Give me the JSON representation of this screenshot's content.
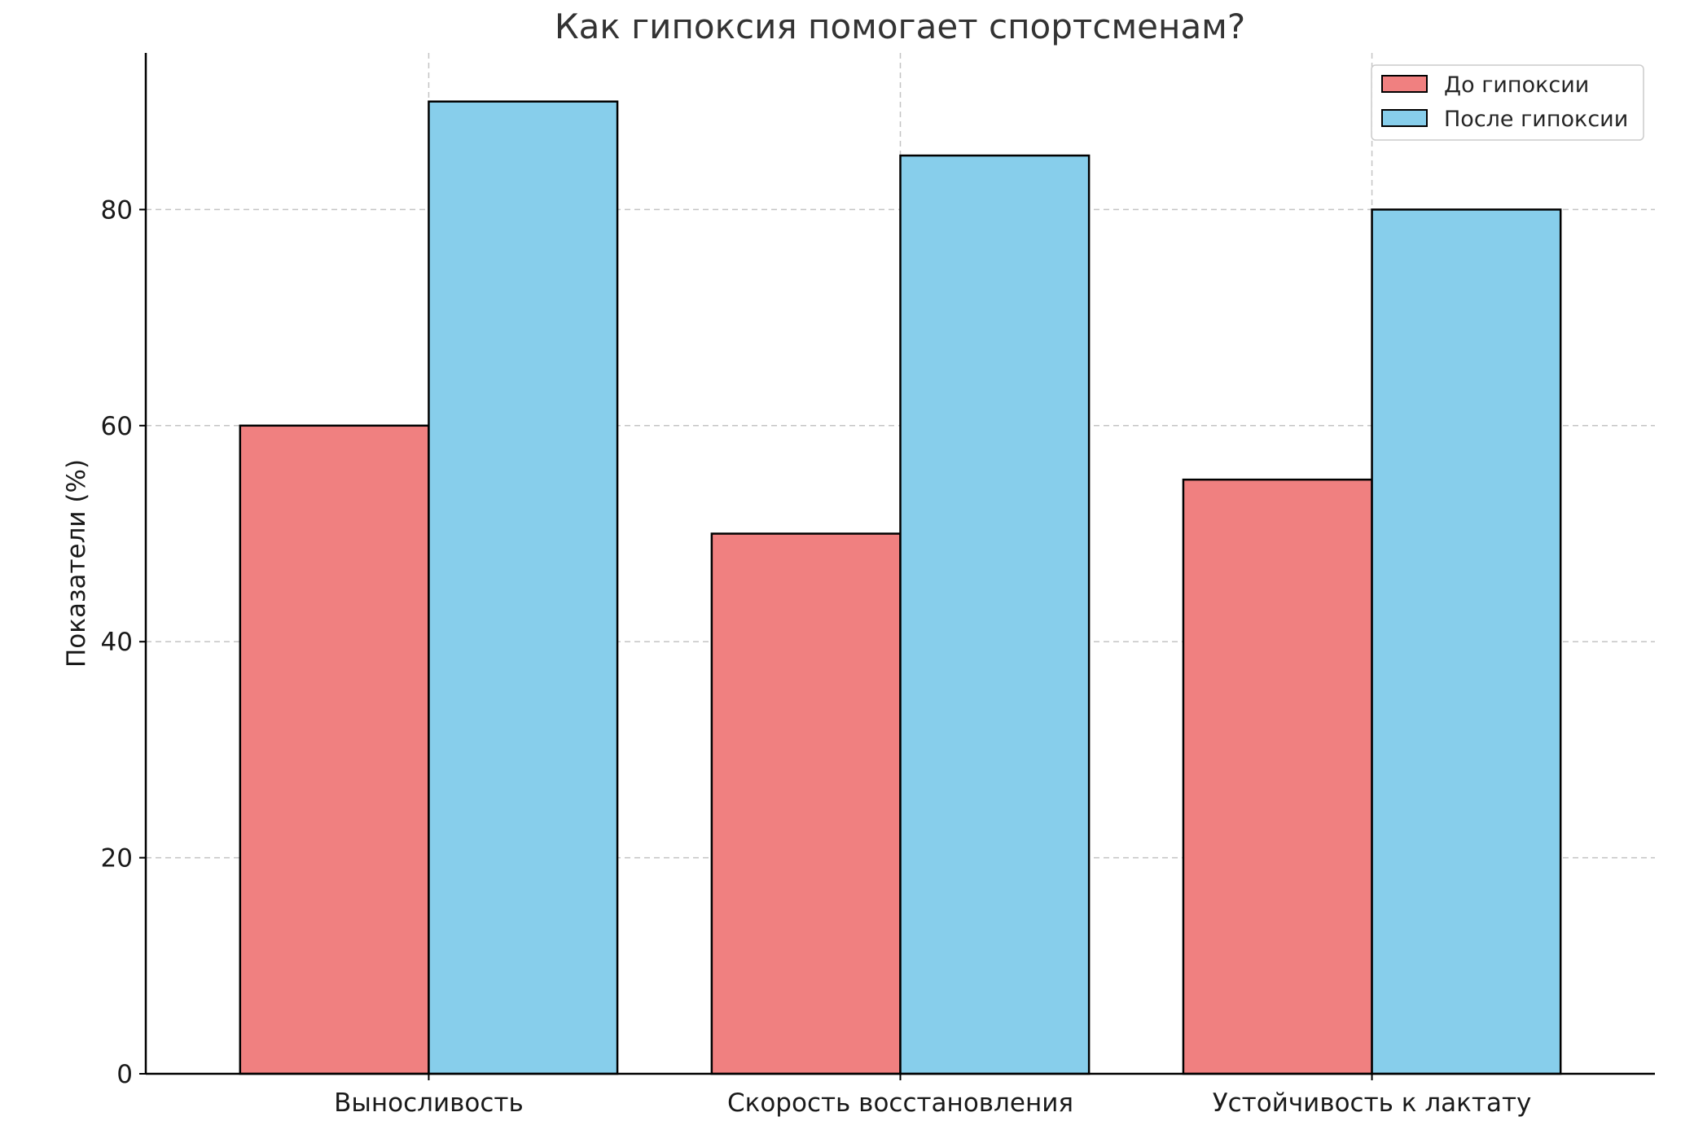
{
  "chart_data": {
    "type": "bar",
    "title": "Как гипоксия помогает спортсменам?",
    "xlabel": "",
    "ylabel": "Показатели (%)",
    "categories": [
      "Выносливость",
      "Скорость восстановления",
      "Устойчивость к лактату"
    ],
    "series": [
      {
        "name": "До гипоксии",
        "values": [
          60,
          50,
          55
        ],
        "color": "#F08080"
      },
      {
        "name": "После гипоксии",
        "values": [
          90,
          85,
          80
        ],
        "color": "#87CEEB"
      }
    ],
    "ylim": [
      0,
      94.5
    ],
    "yticks": [
      0,
      20,
      40,
      60,
      80
    ],
    "grid": true,
    "legend": "top-right"
  }
}
